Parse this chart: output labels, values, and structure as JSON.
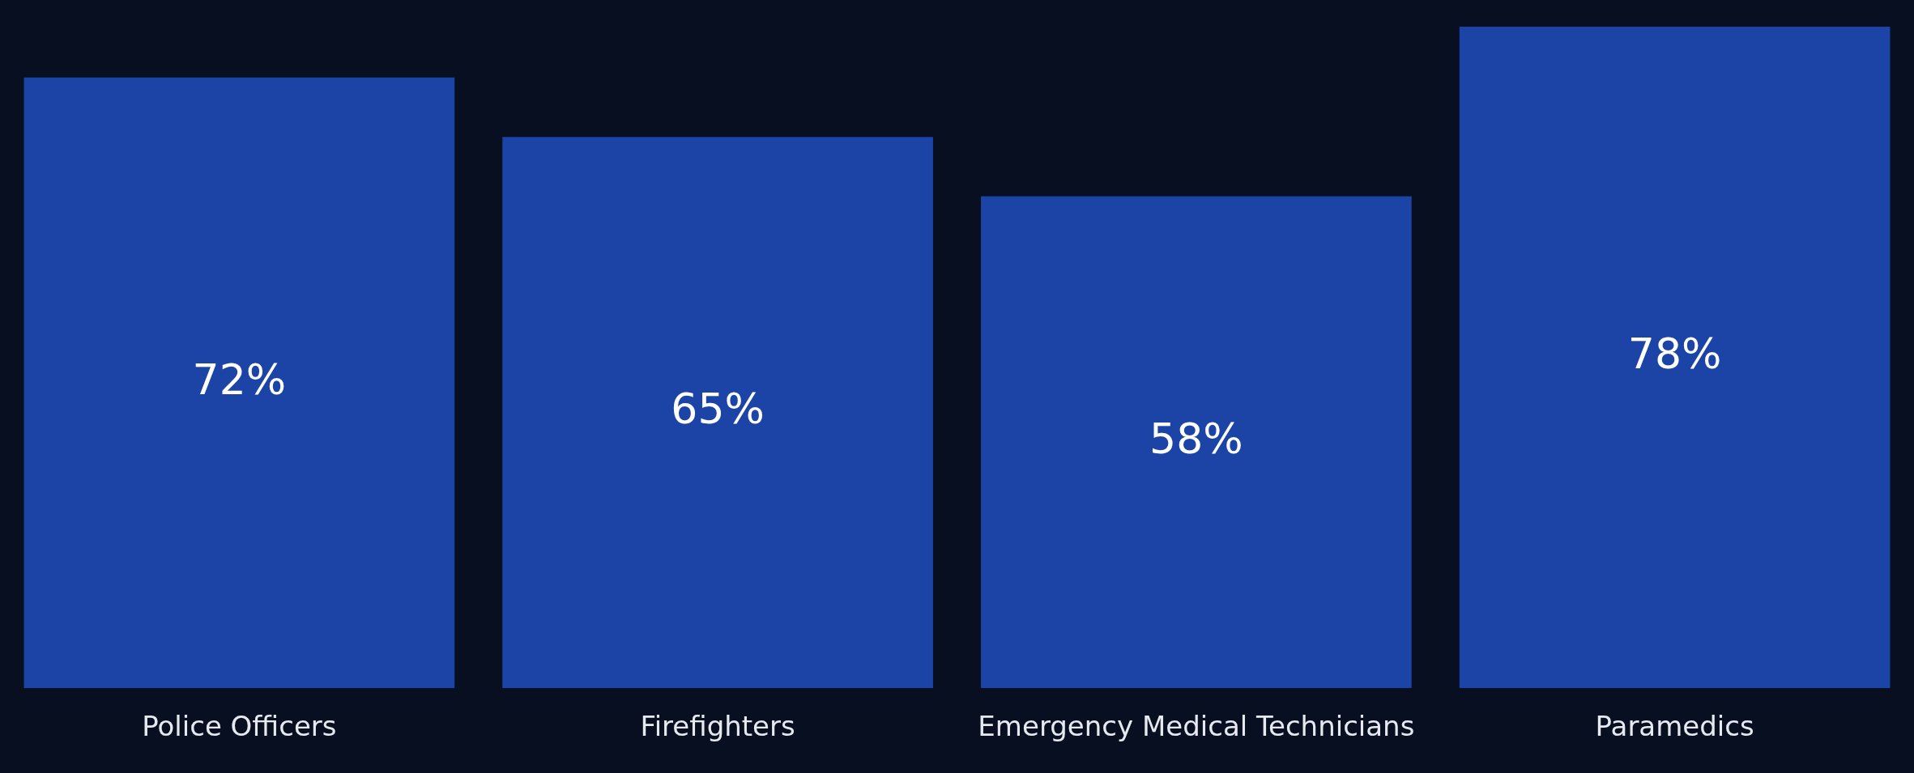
{
  "chart_data": {
    "type": "bar",
    "categories": [
      "Police Officers",
      "Firefighters",
      "Emergency Medical Technicians",
      "Paramedics"
    ],
    "values": [
      72,
      65,
      58,
      78
    ],
    "color": "#1c44a6",
    "value_labels": [
      "72%",
      "65%",
      "58%",
      "78%"
    ],
    "tick_labels": "x",
    "legend": false
  }
}
